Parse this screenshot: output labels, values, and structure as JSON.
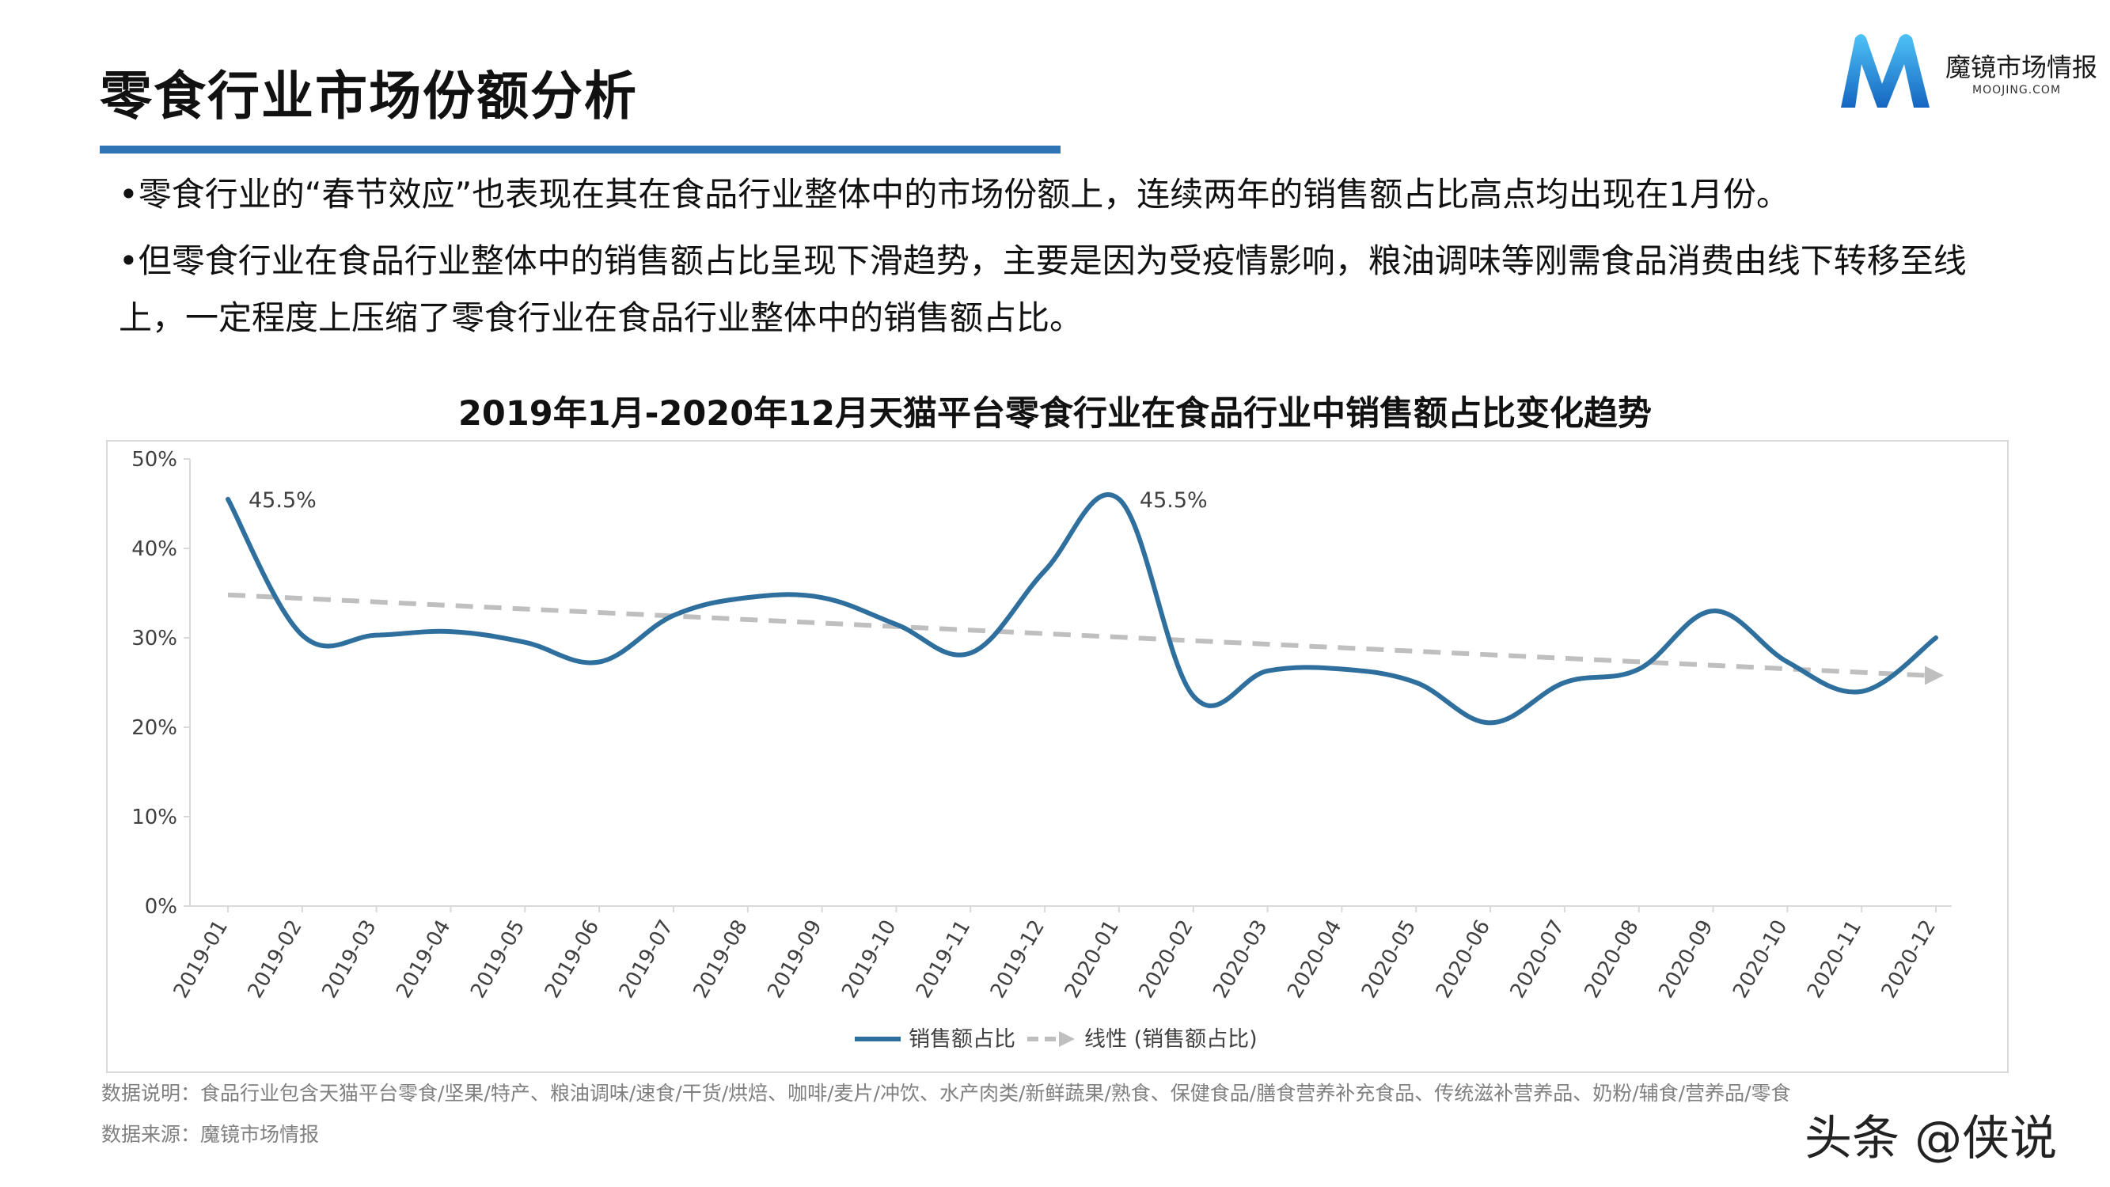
{
  "page": {
    "title": "零食行业市场份额分析",
    "logo": {
      "name": "魔镜市场情报",
      "sub": "MOOJING.COM"
    },
    "bullets": [
      "•零食行业的“春节效应”也表现在其在食品行业整体中的市场份额上，连续两年的销售额占比高点均出现在1月份。",
      "•但零食行业在食品行业整体中的销售额占比呈现下滑趋势，主要是因为受疫情影响，粮油调味等刚需食品消费由线下转移至线上，一定程度上压缩了零食行业在食品行业整体中的销售额占比。"
    ],
    "note": "数据说明：食品行业包含天猫平台零食/坚果/特产、粮油调味/速食/干货/烘焙、咖啡/麦片/冲饮、水产肉类/新鲜蔬果/熟食、保健食品/膳食营养补充食品、传统滋补营养品、奶粉/辅食/营养品/零食",
    "source": "数据来源：魔镜市场情报",
    "watermark": "头条 @侠说"
  },
  "chart_data": {
    "type": "line",
    "title": "2019年1月-2020年12月天猫平台零食行业在食品行业中销售额占比变化趋势",
    "categories": [
      "2019-01",
      "2019-02",
      "2019-03",
      "2019-04",
      "2019-05",
      "2019-06",
      "2019-07",
      "2019-08",
      "2019-09",
      "2019-10",
      "2019-11",
      "2019-12",
      "2020-01",
      "2020-02",
      "2020-03",
      "2020-04",
      "2020-05",
      "2020-06",
      "2020-07",
      "2020-08",
      "2020-09",
      "2020-10",
      "2020-11",
      "2020-12"
    ],
    "series": [
      {
        "name": "销售额占比",
        "color": "#2e6f9e",
        "values": [
          45.5,
          30.3,
          30.3,
          30.7,
          29.5,
          27.3,
          32.5,
          34.5,
          34.5,
          31.5,
          28.3,
          37.5,
          45.5,
          23.5,
          26.3,
          26.5,
          25.0,
          20.5,
          25.0,
          26.5,
          33.0,
          27.3,
          24.0,
          30.0
        ]
      }
    ],
    "trendline": {
      "name": "线性 (销售额占比)",
      "color": "#bfbfbf",
      "start": 34.8,
      "end": 25.8
    },
    "data_labels": [
      {
        "index": 0,
        "text": "45.5%"
      },
      {
        "index": 12,
        "text": "45.5%"
      }
    ],
    "yticks": [
      "0%",
      "10%",
      "20%",
      "30%",
      "40%",
      "50%"
    ],
    "ylim": [
      0,
      50
    ],
    "legend": "bottom"
  }
}
